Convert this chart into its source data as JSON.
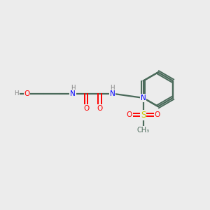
{
  "bg_color": "#ececec",
  "bond_color": "#4a6a5a",
  "atom_colors": {
    "O": "#ff0000",
    "N": "#0000ff",
    "S": "#cccc00",
    "H": "#808080",
    "C": "#4a6a5a"
  }
}
